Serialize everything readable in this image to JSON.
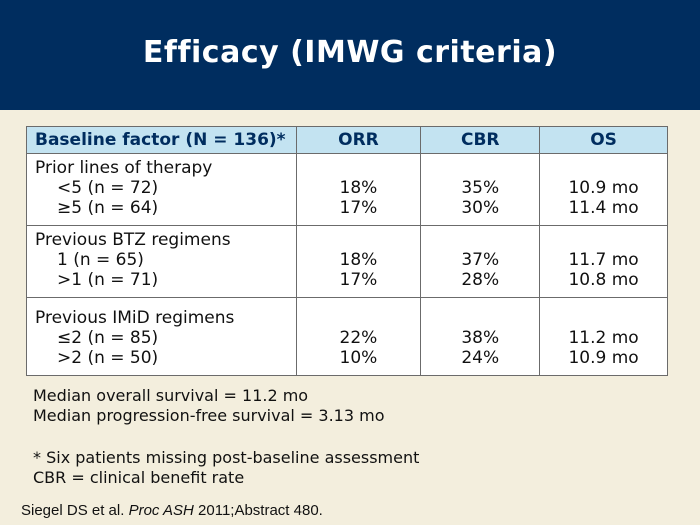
{
  "title": "Efficacy (IMWG criteria)",
  "table": {
    "headers": [
      "Baseline factor (N = 136)*",
      "ORR",
      "CBR",
      "OS"
    ],
    "groups": [
      {
        "label": "Prior lines of therapy",
        "rows": [
          {
            "factor": "<5 (n = 72)",
            "orr": "18%",
            "cbr": "35%",
            "os": "10.9 mo"
          },
          {
            "factor": "≥5 (n = 64)",
            "orr": "17%",
            "cbr": "30%",
            "os": "11.4 mo"
          }
        ]
      },
      {
        "label": "Previous BTZ regimens",
        "rows": [
          {
            "factor": "1 (n = 65)",
            "orr": "18%",
            "cbr": "37%",
            "os": "11.7 mo"
          },
          {
            "factor": ">1 (n = 71)",
            "orr": "17%",
            "cbr": "28%",
            "os": "10.8 mo"
          }
        ]
      },
      {
        "label": "Previous IMiD regimens",
        "rows": [
          {
            "factor": "≤2 (n = 85)",
            "orr": "22%",
            "cbr": "38%",
            "os": "11.2 mo"
          },
          {
            "factor": ">2 (n = 50)",
            "orr": "10%",
            "cbr": "24%",
            "os": "10.9 mo"
          }
        ]
      }
    ]
  },
  "notes": {
    "median_os": "Median overall survival = 11.2 mo",
    "median_pfs": "Median progression-free survival = 3.13 mo",
    "footnote": "* Six patients missing post-baseline assessment",
    "cbr_def": "CBR = clinical benefit rate"
  },
  "citation": {
    "authors": "Siegel DS et al. ",
    "journal": "Proc ASH",
    "rest": " 2011;Abstract 480."
  }
}
